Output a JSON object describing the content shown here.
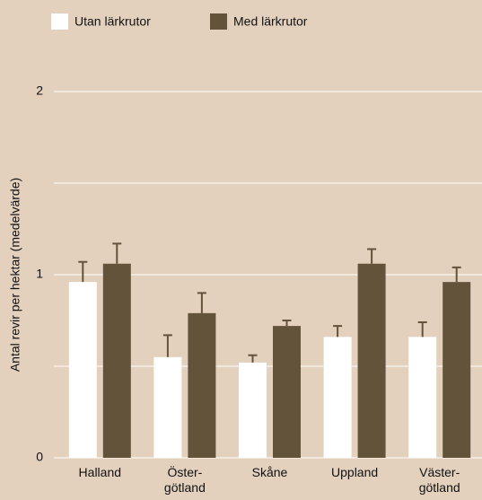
{
  "chart_data": {
    "type": "bar",
    "y_label": "Antal revir per hektar (medelvärde)",
    "categories": [
      [
        "Halland"
      ],
      [
        "Öster-",
        "götland"
      ],
      [
        "Skåne"
      ],
      [
        "Uppland"
      ],
      [
        "Väster-",
        "götland"
      ]
    ],
    "series": [
      {
        "name": "Utan lärkrutor",
        "color": "#ffffff",
        "values": [
          0.96,
          0.55,
          0.52,
          0.66,
          0.66
        ],
        "errors": [
          0.11,
          0.12,
          0.04,
          0.06,
          0.08
        ]
      },
      {
        "name": "Med lärkrutor",
        "color": "#62533a",
        "values": [
          1.06,
          0.79,
          0.72,
          1.06,
          0.96
        ],
        "errors": [
          0.11,
          0.11,
          0.03,
          0.08,
          0.08
        ]
      }
    ],
    "error_color": "#62533a",
    "ylim": [
      0,
      2
    ],
    "yticks": [
      0,
      1,
      2
    ],
    "minor_grid": [
      0.5,
      1.5
    ],
    "grid": true,
    "legend": "top"
  }
}
